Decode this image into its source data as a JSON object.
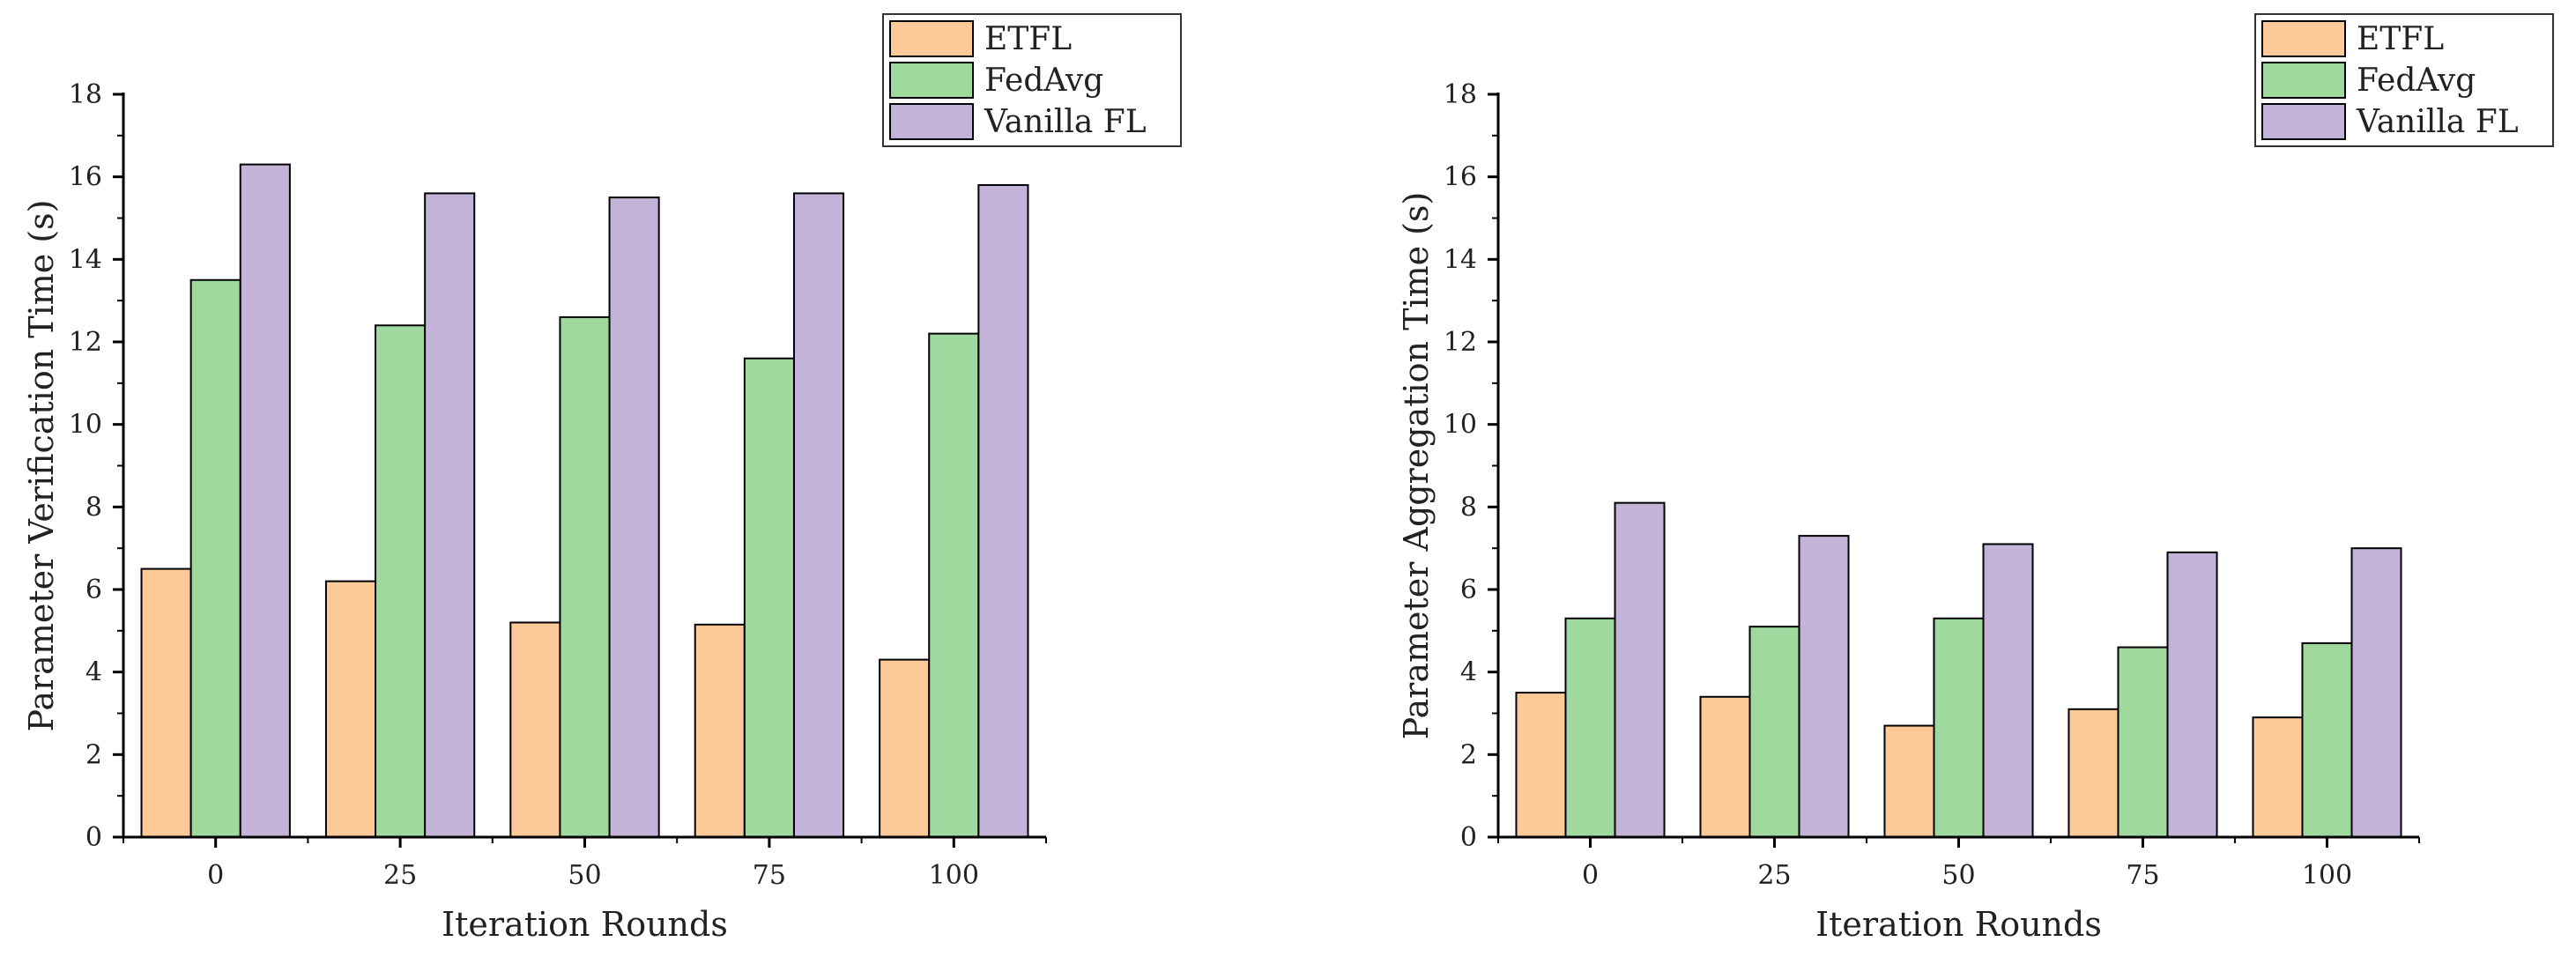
{
  "chart_data": [
    {
      "type": "bar",
      "title": "",
      "xlabel": "Iteration Rounds",
      "ylabel": "Parameter Verification Time (s)",
      "categories": [
        "0",
        "25",
        "50",
        "75",
        "100"
      ],
      "ylim": [
        0,
        18
      ],
      "yticks": [
        "0",
        "2",
        "4",
        "6",
        "8",
        "10",
        "12",
        "14",
        "16",
        "18"
      ],
      "grid": false,
      "legend_position": "top-right",
      "series": [
        {
          "name": "ETFL",
          "color": "#fdc998",
          "values": [
            6.5,
            6.2,
            5.2,
            5.15,
            4.3
          ]
        },
        {
          "name": "FedAvg",
          "color": "#a0d99e",
          "values": [
            13.5,
            12.4,
            12.6,
            11.6,
            12.2
          ]
        },
        {
          "name": "Vanilla FL",
          "color": "#c3b3d8",
          "values": [
            16.3,
            15.6,
            15.5,
            15.6,
            15.8
          ]
        }
      ]
    },
    {
      "type": "bar",
      "title": "",
      "xlabel": "Iteration Rounds",
      "ylabel": "Parameter Aggregation Time (s)",
      "categories": [
        "0",
        "25",
        "50",
        "75",
        "100"
      ],
      "ylim": [
        0,
        18
      ],
      "yticks": [
        "0",
        "2",
        "4",
        "6",
        "8",
        "10",
        "12",
        "14",
        "16",
        "18"
      ],
      "grid": false,
      "legend_position": "top-right",
      "series": [
        {
          "name": "ETFL",
          "color": "#fdc998",
          "values": [
            3.5,
            3.4,
            2.7,
            3.1,
            2.9
          ]
        },
        {
          "name": "FedAvg",
          "color": "#a0d99e",
          "values": [
            5.3,
            5.1,
            5.3,
            4.6,
            4.7
          ]
        },
        {
          "name": "Vanilla FL",
          "color": "#c3b3d8",
          "values": [
            8.1,
            7.3,
            7.1,
            6.9,
            7.0
          ]
        }
      ]
    }
  ]
}
